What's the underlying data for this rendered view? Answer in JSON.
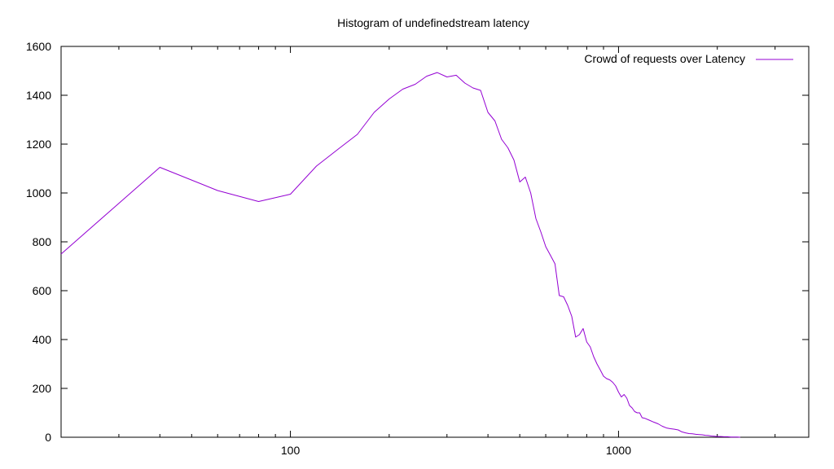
{
  "chart_data": {
    "type": "line",
    "title": "Histogram of undefinedstream latency",
    "xlabel": "",
    "ylabel": "",
    "x_scale": "log",
    "xlim": [
      20,
      3800
    ],
    "ylim": [
      0,
      1600
    ],
    "x_tick_values": [
      100,
      1000
    ],
    "x_tick_labels": [
      "100",
      "1000"
    ],
    "y_tick_values": [
      0,
      200,
      400,
      600,
      800,
      1000,
      1200,
      1400,
      1600
    ],
    "y_tick_labels": [
      "0",
      "200",
      "400",
      "600",
      "800",
      "1000",
      "1200",
      "1400",
      "1600"
    ],
    "grid": false,
    "legend_position": "top-right",
    "colors": {
      "series": "#9400d3",
      "axes": "#000000",
      "background": "#ffffff"
    },
    "series": [
      {
        "name": "Crowd of requests over Latency",
        "color": "#9400d3",
        "x": [
          20,
          40,
          60,
          80,
          100,
          120,
          140,
          160,
          180,
          200,
          220,
          240,
          260,
          280,
          300,
          320,
          340,
          360,
          380,
          400,
          420,
          440,
          460,
          480,
          500,
          520,
          540,
          560,
          580,
          600,
          620,
          640,
          660,
          680,
          700,
          720,
          740,
          760,
          780,
          800,
          820,
          840,
          860,
          880,
          900,
          920,
          940,
          960,
          980,
          1000,
          1020,
          1040,
          1060,
          1080,
          1100,
          1120,
          1140,
          1160,
          1180,
          1200,
          1240,
          1280,
          1320,
          1360,
          1400,
          1440,
          1480,
          1520,
          1560,
          1600,
          1640,
          1680,
          1720,
          1760,
          1800,
          1840,
          1880,
          1920,
          1960,
          2000,
          2050,
          2100,
          2150,
          2200,
          2250,
          2300,
          2350
        ],
        "y": [
          750,
          1105,
          1010,
          965,
          995,
          1110,
          1180,
          1240,
          1330,
          1385,
          1425,
          1445,
          1478,
          1493,
          1475,
          1482,
          1450,
          1430,
          1420,
          1330,
          1295,
          1220,
          1185,
          1135,
          1045,
          1065,
          1000,
          895,
          840,
          780,
          745,
          710,
          580,
          575,
          540,
          495,
          410,
          420,
          445,
          390,
          370,
          330,
          300,
          275,
          250,
          240,
          235,
          225,
          210,
          185,
          165,
          175,
          160,
          130,
          120,
          105,
          100,
          100,
          80,
          78,
          70,
          62,
          55,
          45,
          38,
          35,
          33,
          30,
          22,
          18,
          15,
          14,
          12,
          11,
          10,
          8,
          7,
          5,
          4,
          3,
          3,
          2,
          2,
          1,
          1,
          1,
          0
        ]
      }
    ]
  }
}
